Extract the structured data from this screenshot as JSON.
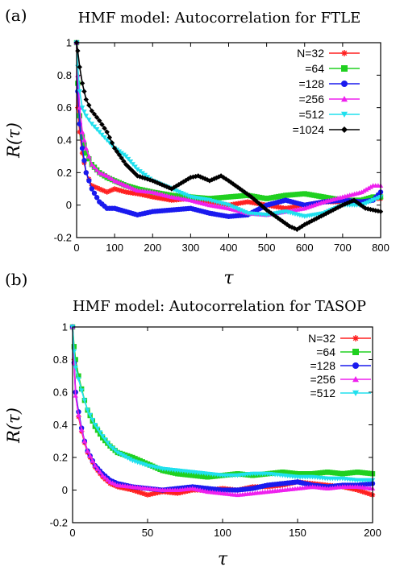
{
  "figure": {
    "panel_a_label": "(a)",
    "panel_b_label": "(b)"
  },
  "chart_data": [
    {
      "type": "line",
      "title": "HMF model: Autocorrelation for FTLE",
      "xlabel": "τ",
      "ylabel": "R(τ)",
      "xlim": [
        0,
        800
      ],
      "ylim": [
        -0.2,
        1
      ],
      "xticks": [
        0,
        100,
        200,
        300,
        400,
        500,
        600,
        700,
        800
      ],
      "yticks": [
        -0.2,
        0,
        0.2,
        0.4,
        0.6,
        0.8,
        1
      ],
      "legend_position": "top-right",
      "series": [
        {
          "name": "N=32",
          "color": "#ff2020",
          "marker": "star",
          "x": [
            0,
            3,
            8,
            15,
            25,
            40,
            60,
            80,
            100,
            130,
            160,
            200,
            250,
            300,
            350,
            400,
            450,
            500,
            550,
            600,
            650,
            700,
            750,
            780,
            800
          ],
          "y": [
            1,
            0.6,
            0.45,
            0.32,
            0.2,
            0.12,
            0.1,
            0.08,
            0.1,
            0.08,
            0.07,
            0.05,
            0.03,
            0.04,
            0.02,
            0.0,
            0.02,
            0.0,
            -0.02,
            0.0,
            0.02,
            0.02,
            0.03,
            0.04,
            0.04
          ]
        },
        {
          "name": "=64",
          "color": "#20d020",
          "marker": "square",
          "x": [
            0,
            3,
            8,
            15,
            25,
            40,
            60,
            80,
            100,
            130,
            160,
            200,
            250,
            300,
            350,
            400,
            450,
            500,
            550,
            600,
            650,
            700,
            750,
            780,
            800
          ],
          "y": [
            1,
            0.75,
            0.55,
            0.42,
            0.32,
            0.25,
            0.2,
            0.17,
            0.15,
            0.12,
            0.1,
            0.08,
            0.06,
            0.05,
            0.04,
            0.05,
            0.06,
            0.04,
            0.06,
            0.07,
            0.05,
            0.03,
            0.03,
            0.05,
            0.05
          ]
        },
        {
          "name": "=128",
          "color": "#1a1aee",
          "marker": "circle",
          "x": [
            0,
            3,
            8,
            15,
            25,
            40,
            60,
            80,
            100,
            130,
            160,
            200,
            250,
            300,
            350,
            400,
            450,
            500,
            550,
            600,
            650,
            700,
            750,
            780,
            800
          ],
          "y": [
            1,
            0.7,
            0.5,
            0.35,
            0.2,
            0.1,
            0.02,
            -0.02,
            -0.02,
            -0.04,
            -0.06,
            -0.04,
            -0.03,
            -0.02,
            -0.05,
            -0.07,
            -0.06,
            0.0,
            0.03,
            0.0,
            0.02,
            0.03,
            0.02,
            0.03,
            0.08
          ]
        },
        {
          "name": "=256",
          "color": "#ee20ee",
          "marker": "triangle-up",
          "x": [
            0,
            3,
            8,
            15,
            25,
            40,
            60,
            80,
            100,
            130,
            160,
            200,
            250,
            300,
            350,
            400,
            450,
            500,
            550,
            600,
            650,
            700,
            750,
            780,
            800
          ],
          "y": [
            1,
            0.8,
            0.6,
            0.45,
            0.35,
            0.25,
            0.2,
            0.18,
            0.15,
            0.12,
            0.09,
            0.08,
            0.05,
            0.03,
            0.0,
            -0.02,
            -0.05,
            -0.06,
            -0.04,
            -0.02,
            0.02,
            0.05,
            0.08,
            0.12,
            0.12
          ]
        },
        {
          "name": "=512",
          "color": "#20e0ee",
          "marker": "triangle-down",
          "x": [
            0,
            3,
            8,
            15,
            25,
            40,
            60,
            80,
            100,
            130,
            160,
            200,
            250,
            300,
            350,
            400,
            450,
            500,
            550,
            600,
            650,
            700,
            750,
            780,
            800
          ],
          "y": [
            1,
            0.85,
            0.7,
            0.6,
            0.55,
            0.5,
            0.45,
            0.4,
            0.35,
            0.3,
            0.22,
            0.15,
            0.1,
            0.05,
            0.03,
            0.0,
            -0.05,
            -0.06,
            -0.04,
            -0.07,
            -0.05,
            0.0,
            0.0,
            0.03,
            0.05
          ]
        },
        {
          "name": "=1024",
          "color": "#000000",
          "marker": "diamond",
          "x": [
            0,
            3,
            8,
            15,
            25,
            40,
            60,
            80,
            100,
            130,
            160,
            200,
            250,
            300,
            320,
            350,
            380,
            400,
            430,
            460,
            500,
            530,
            560,
            580,
            600,
            650,
            700,
            730,
            760,
            800
          ],
          "y": [
            1,
            0.95,
            0.85,
            0.75,
            0.65,
            0.58,
            0.52,
            0.45,
            0.35,
            0.25,
            0.18,
            0.15,
            0.1,
            0.17,
            0.18,
            0.15,
            0.18,
            0.15,
            0.1,
            0.05,
            -0.03,
            -0.08,
            -0.13,
            -0.15,
            -0.12,
            -0.06,
            0.0,
            0.03,
            -0.02,
            -0.04
          ]
        }
      ]
    },
    {
      "type": "line",
      "title": "HMF model: Autocorrelation for TASOP",
      "xlabel": "τ",
      "ylabel": "R(τ)",
      "xlim": [
        0,
        200
      ],
      "ylim": [
        -0.2,
        1
      ],
      "xticks": [
        0,
        50,
        100,
        150,
        200
      ],
      "yticks": [
        -0.2,
        0,
        0.2,
        0.4,
        0.6,
        0.8,
        1
      ],
      "legend_position": "top-right",
      "series": [
        {
          "name": "N=32",
          "color": "#ff2020",
          "marker": "star",
          "x": [
            0,
            1,
            2,
            4,
            6,
            8,
            10,
            15,
            20,
            25,
            30,
            40,
            50,
            60,
            70,
            80,
            90,
            100,
            110,
            120,
            130,
            140,
            150,
            160,
            170,
            180,
            190,
            200
          ],
          "y": [
            1,
            0.8,
            0.6,
            0.45,
            0.36,
            0.29,
            0.23,
            0.14,
            0.08,
            0.04,
            0.02,
            0.0,
            -0.03,
            -0.01,
            -0.02,
            0.0,
            0.0,
            0.01,
            0.0,
            0.02,
            0.02,
            0.03,
            0.05,
            0.04,
            0.03,
            0.02,
            0.0,
            -0.03
          ]
        },
        {
          "name": "=64",
          "color": "#20d020",
          "marker": "square",
          "x": [
            0,
            1,
            2,
            4,
            6,
            8,
            10,
            15,
            20,
            25,
            30,
            40,
            50,
            60,
            70,
            80,
            90,
            100,
            110,
            120,
            130,
            140,
            150,
            160,
            170,
            180,
            190,
            200
          ],
          "y": [
            1,
            0.88,
            0.8,
            0.7,
            0.62,
            0.55,
            0.49,
            0.39,
            0.32,
            0.27,
            0.23,
            0.2,
            0.16,
            0.12,
            0.1,
            0.09,
            0.08,
            0.09,
            0.1,
            0.09,
            0.1,
            0.11,
            0.1,
            0.1,
            0.11,
            0.1,
            0.11,
            0.1
          ]
        },
        {
          "name": "=128",
          "color": "#1a1aee",
          "marker": "circle",
          "x": [
            0,
            1,
            2,
            4,
            6,
            8,
            10,
            15,
            20,
            25,
            30,
            40,
            50,
            60,
            70,
            80,
            90,
            100,
            110,
            120,
            130,
            140,
            150,
            160,
            170,
            180,
            190,
            200
          ],
          "y": [
            1,
            0.78,
            0.6,
            0.48,
            0.38,
            0.3,
            0.24,
            0.15,
            0.1,
            0.06,
            0.04,
            0.02,
            0.01,
            0.0,
            0.01,
            0.02,
            0.01,
            0.0,
            0.0,
            0.01,
            0.03,
            0.04,
            0.05,
            0.03,
            0.02,
            0.03,
            0.03,
            0.04
          ]
        },
        {
          "name": "=256",
          "color": "#ee20ee",
          "marker": "triangle-up",
          "x": [
            0,
            1,
            2,
            4,
            6,
            8,
            10,
            15,
            20,
            25,
            30,
            40,
            50,
            60,
            70,
            80,
            90,
            100,
            110,
            120,
            130,
            140,
            150,
            160,
            170,
            180,
            190,
            200
          ],
          "y": [
            1,
            0.78,
            0.58,
            0.46,
            0.37,
            0.3,
            0.24,
            0.15,
            0.09,
            0.05,
            0.03,
            0.02,
            0.01,
            0.0,
            0.0,
            0.01,
            -0.01,
            -0.02,
            -0.03,
            -0.02,
            -0.01,
            0.0,
            0.01,
            0.02,
            0.01,
            0.02,
            0.02,
            0.01
          ]
        },
        {
          "name": "=512",
          "color": "#20e0ee",
          "marker": "triangle-down",
          "x": [
            0,
            1,
            2,
            4,
            6,
            8,
            10,
            15,
            20,
            25,
            30,
            40,
            50,
            60,
            70,
            80,
            90,
            100,
            110,
            120,
            130,
            140,
            150,
            160,
            170,
            180,
            190,
            200
          ],
          "y": [
            1,
            0.85,
            0.75,
            0.68,
            0.61,
            0.55,
            0.49,
            0.4,
            0.33,
            0.27,
            0.23,
            0.18,
            0.15,
            0.13,
            0.12,
            0.11,
            0.1,
            0.09,
            0.09,
            0.1,
            0.1,
            0.09,
            0.08,
            0.08,
            0.07,
            0.07,
            0.06,
            0.06
          ]
        }
      ]
    }
  ]
}
